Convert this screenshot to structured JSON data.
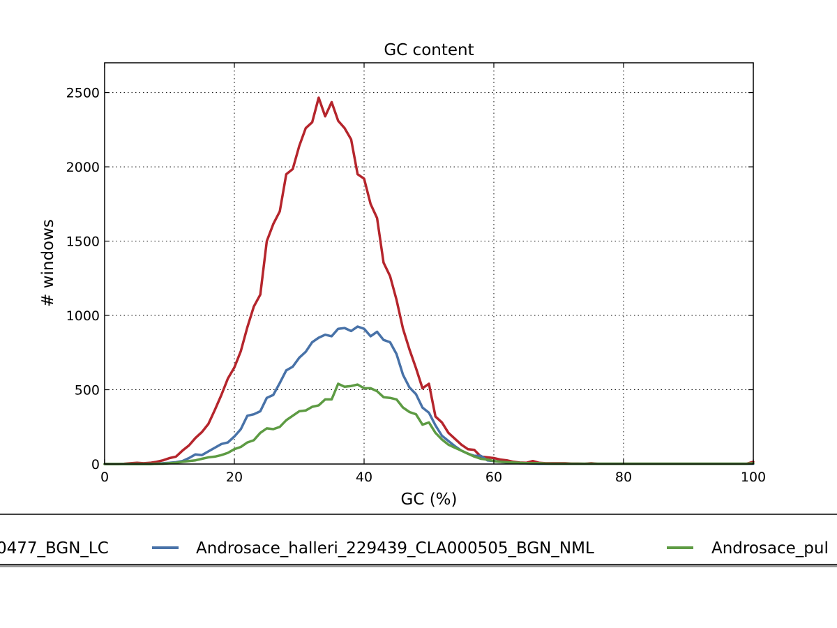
{
  "chart_data": {
    "type": "line",
    "title": "GC content",
    "xlabel": "GC (%)",
    "ylabel": "# windows",
    "xlim": [
      0,
      100
    ],
    "ylim": [
      0,
      2700
    ],
    "xticks": [
      0,
      20,
      40,
      60,
      80,
      100
    ],
    "yticks": [
      0,
      500,
      1000,
      1500,
      2000,
      2500
    ],
    "grid": true,
    "legend_position": "bottom",
    "x": [
      0,
      1,
      2,
      3,
      4,
      5,
      6,
      7,
      8,
      9,
      10,
      11,
      12,
      13,
      14,
      15,
      16,
      17,
      18,
      19,
      20,
      21,
      22,
      23,
      24,
      25,
      26,
      27,
      28,
      29,
      30,
      31,
      32,
      33,
      34,
      35,
      36,
      37,
      38,
      39,
      40,
      41,
      42,
      43,
      44,
      45,
      46,
      47,
      48,
      49,
      50,
      51,
      52,
      53,
      54,
      55,
      56,
      57,
      58,
      59,
      60,
      61,
      62,
      63,
      64,
      65,
      66,
      67,
      68,
      69,
      70,
      71,
      72,
      73,
      74,
      75,
      76,
      77,
      78,
      79,
      80,
      81,
      82,
      83,
      84,
      85,
      86,
      87,
      88,
      89,
      90,
      91,
      92,
      93,
      94,
      95,
      96,
      97,
      98,
      99,
      100
    ],
    "series": [
      {
        "name": "0477_BGN_LC",
        "color": "#b5252c",
        "values": [
          0,
          0,
          0,
          2,
          5,
          8,
          5,
          8,
          15,
          25,
          40,
          50,
          90,
          125,
          175,
          215,
          270,
          365,
          465,
          575,
          650,
          760,
          920,
          1060,
          1140,
          1500,
          1615,
          1700,
          1950,
          1985,
          2140,
          2260,
          2300,
          2465,
          2340,
          2435,
          2310,
          2260,
          2185,
          1950,
          1920,
          1750,
          1655,
          1355,
          1265,
          1105,
          910,
          770,
          645,
          510,
          540,
          320,
          280,
          210,
          170,
          130,
          100,
          95,
          50,
          45,
          40,
          30,
          25,
          15,
          10,
          8,
          20,
          8,
          5,
          5,
          5,
          5,
          3,
          3,
          2,
          5,
          2,
          2,
          2,
          2,
          2,
          2,
          2,
          2,
          2,
          2,
          2,
          2,
          2,
          2,
          2,
          2,
          2,
          2,
          2,
          2,
          2,
          2,
          2,
          2,
          15
        ]
      },
      {
        "name": "Androsace_halleri_229439_CLA000505_BGN_NML",
        "color": "#4872a8",
        "values": [
          0,
          0,
          0,
          0,
          0,
          0,
          0,
          0,
          2,
          5,
          8,
          12,
          20,
          40,
          65,
          60,
          85,
          110,
          135,
          145,
          185,
          235,
          325,
          335,
          355,
          445,
          465,
          545,
          630,
          655,
          715,
          755,
          820,
          850,
          870,
          860,
          910,
          915,
          895,
          925,
          910,
          860,
          890,
          835,
          820,
          740,
          600,
          515,
          470,
          380,
          345,
          260,
          190,
          155,
          120,
          90,
          70,
          55,
          55,
          25,
          20,
          15,
          10,
          8,
          5,
          5,
          3,
          2,
          2,
          2,
          2,
          2,
          2,
          2,
          2,
          2,
          2,
          2,
          2,
          2,
          2,
          2,
          2,
          2,
          2,
          2,
          2,
          2,
          2,
          2,
          2,
          2,
          2,
          2,
          2,
          2,
          2,
          2,
          2,
          2,
          2
        ]
      },
      {
        "name": "Androsace_pul",
        "color": "#5d9b43",
        "values": [
          0,
          0,
          0,
          0,
          0,
          0,
          0,
          0,
          2,
          2,
          5,
          8,
          15,
          20,
          25,
          35,
          45,
          50,
          60,
          75,
          100,
          115,
          145,
          160,
          210,
          240,
          235,
          250,
          295,
          325,
          355,
          360,
          385,
          395,
          435,
          435,
          540,
          520,
          525,
          535,
          510,
          510,
          490,
          450,
          445,
          435,
          380,
          350,
          335,
          265,
          280,
          210,
          165,
          130,
          110,
          90,
          70,
          50,
          35,
          30,
          20,
          15,
          12,
          10,
          8,
          5,
          5,
          5,
          3,
          2,
          2,
          2,
          2,
          2,
          2,
          2,
          2,
          2,
          2,
          2,
          2,
          2,
          2,
          2,
          2,
          2,
          2,
          2,
          2,
          2,
          2,
          2,
          2,
          2,
          2,
          2,
          2,
          2,
          2,
          2,
          5
        ]
      }
    ]
  },
  "legend": {
    "items": [
      {
        "label": "0477_BGN_LC",
        "color": "#b5252c"
      },
      {
        "label": "Androsace_halleri_229439_CLA000505_BGN_NML",
        "color": "#4872a8"
      },
      {
        "label": "Androsace_pul",
        "color": "#5d9b43"
      }
    ]
  }
}
